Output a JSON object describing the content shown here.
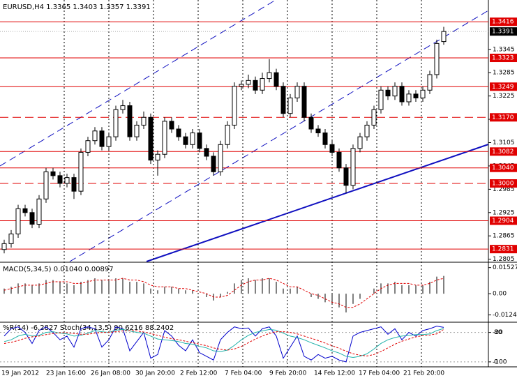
{
  "chart_data": {
    "type": "candlestick",
    "title": "EURUSD,H4  1.3365 1.3403 1.3357 1.3391",
    "x_labels": [
      "19 Jan 2012",
      "23 Jan 16:00",
      "26 Jan 08:00",
      "30 Jan 20:00",
      "2 Feb 12:00",
      "7 Feb 04:00",
      "9 Feb 20:00",
      "14 Feb 12:00",
      "17 Feb 04:00",
      "21 Feb 20:00"
    ],
    "candles": [
      [
        1.283,
        1.2855,
        1.282,
        1.2845
      ],
      [
        1.2845,
        1.288,
        1.2835,
        1.287
      ],
      [
        1.287,
        1.2945,
        1.286,
        1.2935
      ],
      [
        1.2935,
        1.2945,
        1.2915,
        1.2925
      ],
      [
        1.2925,
        1.2935,
        1.2885,
        1.2895
      ],
      [
        1.2895,
        1.297,
        1.2885,
        1.296
      ],
      [
        1.296,
        1.304,
        1.295,
        1.303
      ],
      [
        1.303,
        1.304,
        1.301,
        1.302
      ],
      [
        1.302,
        1.303,
        1.299,
        1.3
      ],
      [
        1.3,
        1.3025,
        1.299,
        1.3015
      ],
      [
        1.3015,
        1.3025,
        1.296,
        1.298
      ],
      [
        1.298,
        1.309,
        1.297,
        1.308
      ],
      [
        1.308,
        1.312,
        1.307,
        1.311
      ],
      [
        1.311,
        1.3145,
        1.31,
        1.3135
      ],
      [
        1.3135,
        1.3145,
        1.3085,
        1.3095
      ],
      [
        1.3095,
        1.313,
        1.3085,
        1.312
      ],
      [
        1.312,
        1.32,
        1.311,
        1.319
      ],
      [
        1.319,
        1.3215,
        1.318,
        1.32
      ],
      [
        1.32,
        1.321,
        1.311,
        1.312
      ],
      [
        1.312,
        1.316,
        1.311,
        1.315
      ],
      [
        1.315,
        1.3185,
        1.314,
        1.317
      ],
      [
        1.317,
        1.318,
        1.305,
        1.306
      ],
      [
        1.306,
        1.3085,
        1.302,
        1.3075
      ],
      [
        1.3075,
        1.317,
        1.3065,
        1.316
      ],
      [
        1.316,
        1.317,
        1.313,
        1.314
      ],
      [
        1.314,
        1.315,
        1.311,
        1.312
      ],
      [
        1.312,
        1.313,
        1.309,
        1.31
      ],
      [
        1.31,
        1.314,
        1.309,
        1.313
      ],
      [
        1.313,
        1.314,
        1.308,
        1.309
      ],
      [
        1.309,
        1.31,
        1.306,
        1.307
      ],
      [
        1.307,
        1.308,
        1.302,
        1.303
      ],
      [
        1.303,
        1.311,
        1.302,
        1.31
      ],
      [
        1.31,
        1.316,
        1.309,
        1.315
      ],
      [
        1.315,
        1.326,
        1.314,
        1.325
      ],
      [
        1.325,
        1.3265,
        1.324,
        1.3255
      ],
      [
        1.3255,
        1.328,
        1.3245,
        1.3265
      ],
      [
        1.3265,
        1.3275,
        1.323,
        1.324
      ],
      [
        1.324,
        1.3285,
        1.323,
        1.327
      ],
      [
        1.327,
        1.332,
        1.326,
        1.3285
      ],
      [
        1.3285,
        1.3295,
        1.324,
        1.325
      ],
      [
        1.325,
        1.326,
        1.317,
        1.318
      ],
      [
        1.318,
        1.323,
        1.317,
        1.322
      ],
      [
        1.322,
        1.326,
        1.321,
        1.325
      ],
      [
        1.325,
        1.326,
        1.316,
        1.317
      ],
      [
        1.317,
        1.318,
        1.313,
        1.314
      ],
      [
        1.314,
        1.315,
        1.312,
        1.313
      ],
      [
        1.313,
        1.314,
        1.309,
        1.31
      ],
      [
        1.31,
        1.311,
        1.307,
        1.308
      ],
      [
        1.308,
        1.309,
        1.303,
        1.304
      ],
      [
        1.304,
        1.305,
        1.2975,
        1.2995
      ],
      [
        1.2995,
        1.31,
        1.2985,
        1.309
      ],
      [
        1.309,
        1.313,
        1.308,
        1.312
      ],
      [
        1.312,
        1.316,
        1.311,
        1.315
      ],
      [
        1.315,
        1.32,
        1.314,
        1.319
      ],
      [
        1.319,
        1.325,
        1.318,
        1.324
      ],
      [
        1.324,
        1.325,
        1.3215,
        1.3225
      ],
      [
        1.3225,
        1.326,
        1.3215,
        1.325
      ],
      [
        1.325,
        1.326,
        1.32,
        1.321
      ],
      [
        1.321,
        1.324,
        1.32,
        1.323
      ],
      [
        1.323,
        1.324,
        1.321,
        1.322
      ],
      [
        1.322,
        1.325,
        1.321,
        1.324
      ],
      [
        1.324,
        1.329,
        1.323,
        1.328
      ],
      [
        1.328,
        1.337,
        1.327,
        1.336
      ],
      [
        1.3365,
        1.3403,
        1.3357,
        1.3391
      ]
    ],
    "ylim": [
      1.2799,
      1.3472
    ],
    "yticks": [
      1.2805,
      1.2865,
      1.2925,
      1.2985,
      1.3045,
      1.3105,
      1.3165,
      1.3225,
      1.3285,
      1.3345
    ],
    "levels": [
      {
        "value": 1.3416,
        "label": "1.3416",
        "style": "solid"
      },
      {
        "value": 1.3323,
        "label": "1.3323",
        "style": "solid"
      },
      {
        "value": 1.3249,
        "label": "1.3249",
        "style": "solid"
      },
      {
        "value": 1.317,
        "label": "1.3170",
        "style": "dashed"
      },
      {
        "value": 1.3082,
        "label": "1.3082",
        "style": "solid"
      },
      {
        "value": 1.304,
        "label": "1.3040",
        "style": "solid"
      },
      {
        "value": 1.3,
        "label": "1.3000",
        "style": "dashed"
      },
      {
        "value": 1.2904,
        "label": "1.2904",
        "style": "solid"
      },
      {
        "value": 1.2831,
        "label": "1.2831",
        "style": "solid"
      }
    ],
    "level_color": "#e00000",
    "current_price": 1.3391,
    "macd": {
      "title": "MACD(5,34,5) 0.01040 0.00897",
      "ylim": [
        -0.0167,
        0.018
      ],
      "yticks": [
        {
          "value": 0.01527,
          "label": "0.01527"
        },
        {
          "value": 0,
          "label": "0.00"
        },
        {
          "value": -0.01244,
          "label": "-0.01244"
        }
      ],
      "series": [
        {
          "name": "MACD",
          "color": "#000000",
          "values": [
            0.003,
            0.004,
            0.006,
            0.006,
            0.005,
            0.006,
            0.008,
            0.008,
            0.007,
            0.006,
            0.005,
            0.007,
            0.008,
            0.009,
            0.008,
            0.008,
            0.009,
            0.009,
            0.007,
            0.007,
            0.006,
            0.003,
            0.002,
            0.004,
            0.004,
            0.003,
            0.002,
            0.002,
            0,
            -0.002,
            -0.004,
            -0.002,
            0.001,
            0.006,
            0.008,
            0.009,
            0.008,
            0.009,
            0.009,
            0.007,
            0.003,
            0.003,
            0.004,
            0,
            -0.002,
            -0.003,
            -0.005,
            -0.006,
            -0.008,
            -0.011,
            -0.006,
            -0.003,
            0,
            0.003,
            0.006,
            0.006,
            0.007,
            0.005,
            0.005,
            0.005,
            0.005,
            0.007,
            0.01,
            0.0104
          ]
        },
        {
          "name": "Signal",
          "color": "#e00000",
          "values": [
            0.002,
            0.003,
            0.004,
            0.005,
            0.005,
            0.005,
            0.006,
            0.007,
            0.007,
            0.007,
            0.006,
            0.006,
            0.007,
            0.008,
            0.008,
            0.008,
            0.008,
            0.009,
            0.008,
            0.008,
            0.007,
            0.005,
            0.004,
            0.004,
            0.004,
            0.003,
            0.003,
            0.002,
            0.001,
            0,
            -0.002,
            -0.002,
            -0.001,
            0.002,
            0.005,
            0.007,
            0.008,
            0.008,
            0.009,
            0.008,
            0.006,
            0.004,
            0.004,
            0.002,
            0,
            -0.001,
            -0.003,
            -0.005,
            -0.006,
            -0.008,
            -0.008,
            -0.006,
            -0.003,
            0,
            0.003,
            0.005,
            0.006,
            0.006,
            0.006,
            0.005,
            0.005,
            0.006,
            0.008,
            0.00897
          ]
        }
      ]
    },
    "oscillators": {
      "title": "%R(14) -6.2827  Stoch(34,13,5) 90.6216 88.2402",
      "ylim": [
        -13.5,
        105.8
      ],
      "yticks": [
        0,
        80
      ],
      "y2lim": [
        -113.5,
        5.8
      ],
      "y2ticks": [
        -100,
        -20
      ],
      "series": [
        {
          "name": "%R(14)",
          "color": "#0000cc",
          "axis": "y2",
          "values": [
            -30,
            -10,
            -5,
            -20,
            -50,
            -15,
            -5,
            -20,
            -40,
            -30,
            -60,
            -10,
            -5,
            -10,
            -60,
            -40,
            -5,
            -10,
            -70,
            -45,
            -20,
            -90,
            -80,
            -15,
            -30,
            -55,
            -70,
            -40,
            -75,
            -85,
            -95,
            -40,
            -20,
            -5,
            -10,
            -8,
            -30,
            -10,
            -5,
            -30,
            -90,
            -60,
            -30,
            -85,
            -95,
            -80,
            -90,
            -85,
            -95,
            -100,
            -30,
            -20,
            -15,
            -10,
            -5,
            -25,
            -10,
            -40,
            -20,
            -30,
            -15,
            -10,
            -3,
            -6.2827
          ]
        },
        {
          "name": "Stoch",
          "color": "#20b2aa",
          "values": [
            55,
            60,
            70,
            75,
            70,
            72,
            80,
            82,
            78,
            76,
            70,
            72,
            78,
            85,
            82,
            80,
            86,
            88,
            84,
            80,
            78,
            70,
            62,
            60,
            58,
            55,
            50,
            48,
            42,
            38,
            30,
            28,
            32,
            45,
            60,
            72,
            80,
            84,
            88,
            86,
            78,
            70,
            66,
            60,
            52,
            45,
            38,
            30,
            24,
            15,
            12,
            15,
            22,
            35,
            50,
            60,
            66,
            70,
            72,
            74,
            74,
            76,
            85,
            90.6216
          ]
        },
        {
          "name": "Stoch signal",
          "color": "#e00000",
          "values": [
            50,
            53,
            58,
            64,
            68,
            70,
            74,
            77,
            79,
            79,
            77,
            75,
            75,
            78,
            80,
            80,
            82,
            84,
            85,
            84,
            81,
            77,
            72,
            67,
            63,
            60,
            56,
            52,
            48,
            44,
            38,
            34,
            32,
            35,
            42,
            52,
            62,
            70,
            77,
            82,
            82,
            80,
            76,
            70,
            64,
            58,
            51,
            44,
            37,
            29,
            22,
            18,
            16,
            20,
            28,
            38,
            48,
            56,
            62,
            68,
            71,
            73,
            76,
            88.2402
          ]
        }
      ]
    }
  }
}
